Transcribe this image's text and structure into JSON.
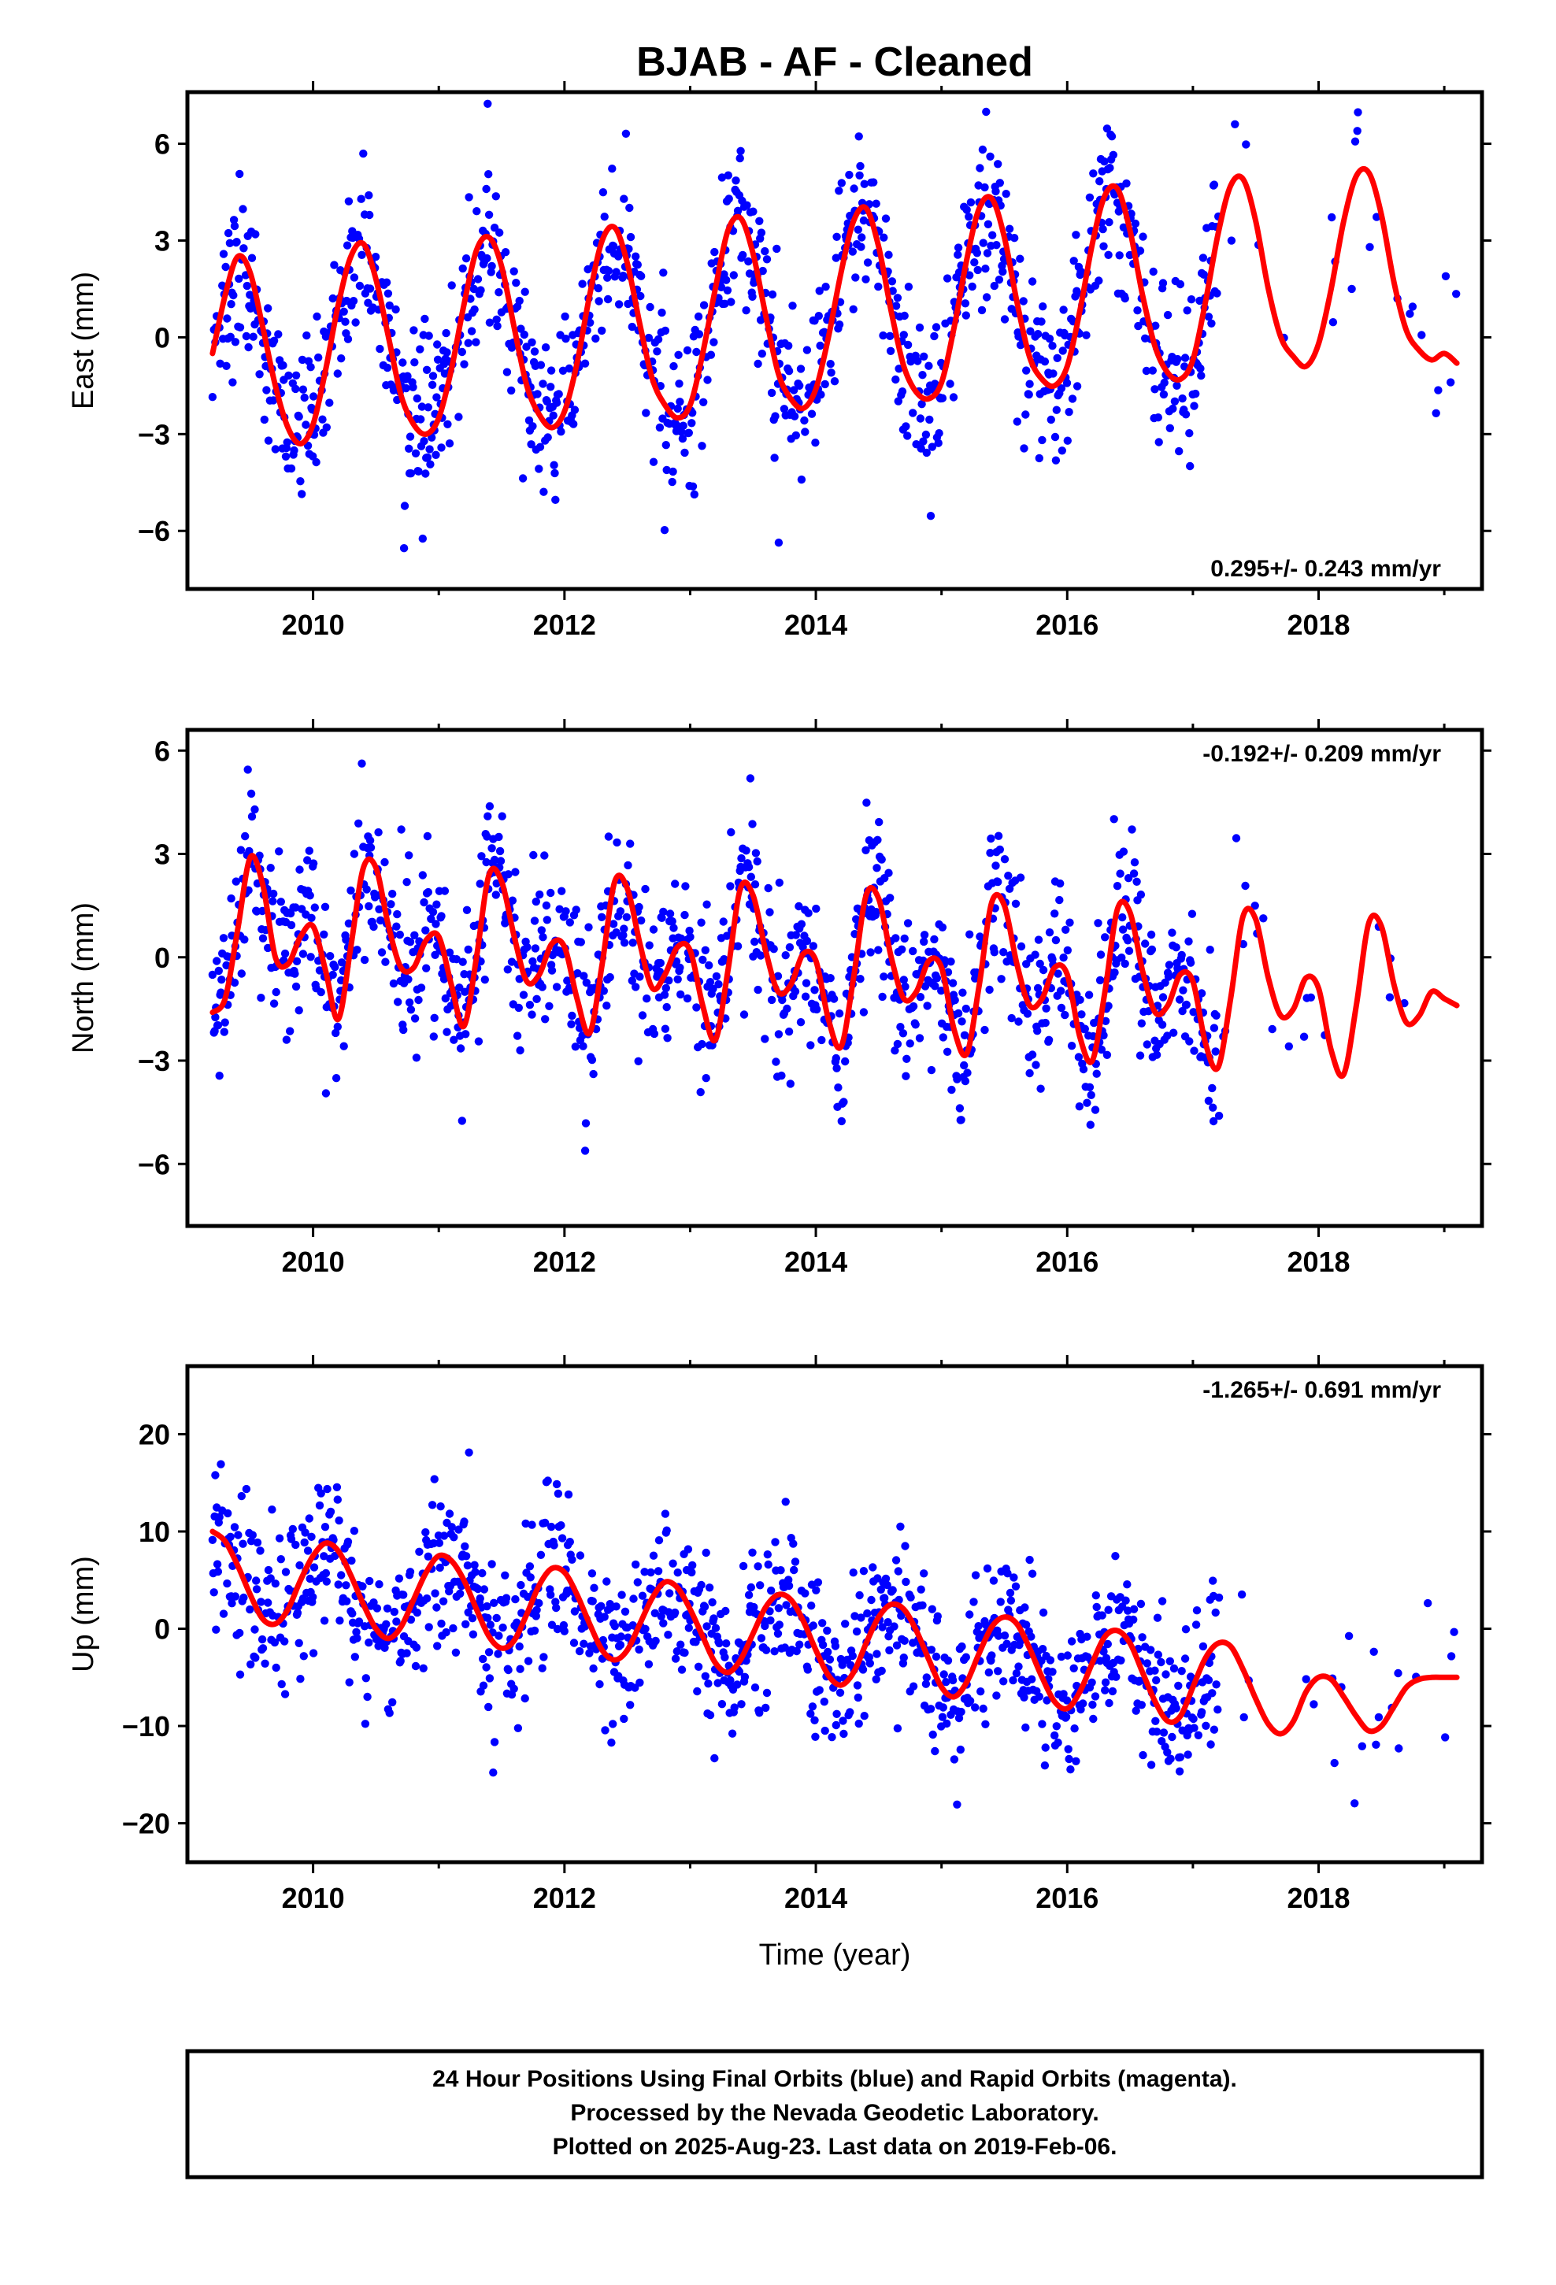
{
  "title": "BJAB  - AF - Cleaned",
  "xlabel": "Time (year)",
  "footer": [
    "24 Hour Positions Using Final Orbits (blue) and Rapid Orbits (magenta).",
    "Processed by the Nevada Geodetic Laboratory.",
    "Plotted on 2025-Aug-23. Last data on 2019-Feb-06."
  ],
  "colors": {
    "points": "#0000ff",
    "model": "#ff0000",
    "frame": "#000000"
  },
  "chart_data": [
    {
      "type": "scatter",
      "ylabel": "East (mm)",
      "xlim": [
        2009.0,
        2019.3
      ],
      "ylim": [
        -7.8,
        7.6
      ],
      "yticks": [
        -6,
        -3,
        0,
        3,
        6
      ],
      "xticks": [
        2010,
        2012,
        2014,
        2016,
        2018
      ],
      "rate_label": "0.295+/- 0.243 mm/yr",
      "rate_pos": "bottom-right",
      "model_series": {
        "x": [
          2009.2,
          2009.3,
          2009.4,
          2009.5,
          2009.6,
          2009.7,
          2009.8,
          2009.9,
          2010.0,
          2010.1,
          2010.2,
          2010.3,
          2010.4,
          2010.5,
          2010.6,
          2010.7,
          2010.8,
          2010.9,
          2011.0,
          2011.1,
          2011.2,
          2011.3,
          2011.4,
          2011.5,
          2011.6,
          2011.7,
          2011.8,
          2011.9,
          2012.0,
          2012.1,
          2012.2,
          2012.3,
          2012.4,
          2012.5,
          2012.6,
          2012.7,
          2012.8,
          2012.9,
          2013.0,
          2013.1,
          2013.2,
          2013.3,
          2013.4,
          2013.5,
          2013.6,
          2013.7,
          2013.8,
          2013.9,
          2014.0,
          2014.1,
          2014.2,
          2014.3,
          2014.4,
          2014.5,
          2014.6,
          2014.7,
          2014.8,
          2014.9,
          2015.0,
          2015.1,
          2015.2,
          2015.3,
          2015.4,
          2015.5,
          2015.6,
          2015.7,
          2015.8,
          2015.9,
          2016.0,
          2016.1,
          2016.2,
          2016.3,
          2016.4,
          2016.5,
          2016.6,
          2016.7,
          2016.8,
          2016.9,
          2017.0,
          2017.1,
          2017.2,
          2017.3,
          2017.4,
          2017.5,
          2017.6,
          2017.7,
          2017.8,
          2017.9,
          2018.0,
          2018.1,
          2018.2,
          2018.3,
          2018.4,
          2018.5,
          2018.6,
          2018.7,
          2018.8,
          2018.9,
          2019.0,
          2019.1
        ],
        "y": [
          -0.5,
          1.3,
          2.5,
          2.0,
          0.3,
          -1.5,
          -2.8,
          -3.3,
          -2.7,
          -1.0,
          1.0,
          2.5,
          2.9,
          1.8,
          0.0,
          -1.8,
          -2.7,
          -3.0,
          -2.5,
          -1.0,
          1.0,
          2.7,
          3.1,
          2.2,
          0.3,
          -1.5,
          -2.4,
          -2.8,
          -2.3,
          -0.8,
          1.3,
          3.0,
          3.4,
          2.3,
          0.4,
          -1.3,
          -2.1,
          -2.5,
          -2.1,
          -0.5,
          1.5,
          3.3,
          3.7,
          2.6,
          0.7,
          -1.1,
          -1.9,
          -2.2,
          -1.6,
          0.0,
          2.0,
          3.6,
          4.0,
          2.8,
          0.8,
          -0.9,
          -1.7,
          -1.9,
          -1.4,
          0.3,
          2.4,
          4.0,
          4.3,
          3.1,
          1.1,
          -0.6,
          -1.3,
          -1.5,
          -0.9,
          0.8,
          2.9,
          4.4,
          4.6,
          3.3,
          1.3,
          -0.3,
          -1.1,
          -1.3,
          -0.7,
          1.1,
          3.2,
          4.7,
          4.9,
          3.6,
          1.5,
          0.0,
          -0.6,
          -0.9,
          -0.2,
          1.5,
          3.6,
          5.0,
          5.1,
          3.8,
          1.7,
          0.2,
          -0.4,
          -0.7,
          -0.5,
          -0.8
        ]
      },
      "observation_model": {
        "amplitude": 3.0,
        "phase_year": 2009.15,
        "noise_sd": 1.3,
        "trend_mm_per_yr": 0.3
      }
    },
    {
      "type": "scatter",
      "ylabel": "North (mm)",
      "xlim": [
        2009.0,
        2019.3
      ],
      "ylim": [
        -7.8,
        6.6
      ],
      "yticks": [
        -6,
        -3,
        0,
        3,
        6
      ],
      "xticks": [
        2010,
        2012,
        2014,
        2016,
        2018
      ],
      "rate_label": "-0.192+/- 0.209 mm/yr",
      "rate_pos": "top-right",
      "model_series": {
        "x": [
          2009.2,
          2009.3,
          2009.4,
          2009.5,
          2009.6,
          2009.7,
          2009.8,
          2009.9,
          2010.0,
          2010.1,
          2010.2,
          2010.3,
          2010.4,
          2010.5,
          2010.6,
          2010.7,
          2010.8,
          2010.9,
          2011.0,
          2011.1,
          2011.2,
          2011.3,
          2011.4,
          2011.5,
          2011.6,
          2011.7,
          2011.8,
          2011.9,
          2012.0,
          2012.1,
          2012.2,
          2012.3,
          2012.4,
          2012.5,
          2012.6,
          2012.7,
          2012.8,
          2012.9,
          2013.0,
          2013.1,
          2013.2,
          2013.3,
          2013.4,
          2013.5,
          2013.6,
          2013.7,
          2013.8,
          2013.9,
          2014.0,
          2014.1,
          2014.2,
          2014.3,
          2014.4,
          2014.5,
          2014.6,
          2014.7,
          2014.8,
          2014.9,
          2015.0,
          2015.1,
          2015.2,
          2015.3,
          2015.4,
          2015.5,
          2015.6,
          2015.7,
          2015.8,
          2015.9,
          2016.0,
          2016.1,
          2016.2,
          2016.3,
          2016.4,
          2016.5,
          2016.6,
          2016.7,
          2016.8,
          2016.9,
          2017.0,
          2017.1,
          2017.2,
          2017.3,
          2017.4,
          2017.5,
          2017.6,
          2017.7,
          2017.8,
          2017.9,
          2018.0,
          2018.1,
          2018.2,
          2018.3,
          2018.4,
          2018.5,
          2018.6,
          2018.7,
          2018.8,
          2018.9,
          2019.0,
          2019.1
        ],
        "y": [
          -1.6,
          -1.2,
          0.8,
          2.9,
          2.1,
          0.0,
          -0.2,
          0.6,
          0.9,
          -0.4,
          -1.8,
          0.3,
          2.6,
          2.6,
          0.9,
          -0.3,
          -0.3,
          0.5,
          0.6,
          -0.8,
          -2.0,
          0.0,
          2.4,
          2.2,
          0.6,
          -0.7,
          -0.5,
          0.4,
          0.3,
          -1.2,
          -2.2,
          -0.2,
          2.2,
          2.0,
          0.4,
          -0.9,
          -0.5,
          0.3,
          0.2,
          -1.4,
          -2.4,
          -0.4,
          2.0,
          1.8,
          0.2,
          -1.0,
          -0.8,
          0.1,
          -0.1,
          -1.8,
          -2.6,
          -0.6,
          1.8,
          1.7,
          0.0,
          -1.2,
          -1.0,
          -0.1,
          -0.3,
          -2.1,
          -2.8,
          -0.8,
          1.6,
          1.5,
          -0.2,
          -1.4,
          -1.2,
          -0.3,
          -0.5,
          -2.3,
          -3.0,
          -1.0,
          1.4,
          1.3,
          -0.4,
          -1.6,
          -1.4,
          -0.5,
          -0.7,
          -2.5,
          -3.2,
          -1.2,
          1.2,
          1.1,
          -0.6,
          -1.7,
          -1.5,
          -0.6,
          -0.9,
          -2.7,
          -3.4,
          -1.4,
          1.0,
          0.9,
          -0.8,
          -1.9,
          -1.7,
          -1.0,
          -1.2,
          -1.4
        ]
      },
      "observation_model": {
        "amplitude": 1.8,
        "phase_year": 2009.4,
        "noise_sd": 1.2,
        "trend_mm_per_yr": -0.2
      }
    },
    {
      "type": "scatter",
      "ylabel": "Up (mm)",
      "xlim": [
        2009.0,
        2019.3
      ],
      "ylim": [
        -24,
        27
      ],
      "yticks": [
        -20,
        -10,
        0,
        10,
        20
      ],
      "xticks": [
        2010,
        2012,
        2014,
        2016,
        2018
      ],
      "rate_label": "-1.265+/- 0.691 mm/yr",
      "rate_pos": "top-right",
      "model_series": {
        "x": [
          2009.2,
          2009.3,
          2009.4,
          2009.5,
          2009.6,
          2009.7,
          2009.8,
          2009.9,
          2010.0,
          2010.1,
          2010.2,
          2010.3,
          2010.4,
          2010.5,
          2010.6,
          2010.7,
          2010.8,
          2010.9,
          2011.0,
          2011.1,
          2011.2,
          2011.3,
          2011.4,
          2011.5,
          2011.6,
          2011.7,
          2011.8,
          2011.9,
          2012.0,
          2012.1,
          2012.2,
          2012.3,
          2012.4,
          2012.5,
          2012.6,
          2012.7,
          2012.8,
          2012.9,
          2013.0,
          2013.1,
          2013.2,
          2013.3,
          2013.4,
          2013.5,
          2013.6,
          2013.7,
          2013.8,
          2013.9,
          2014.0,
          2014.1,
          2014.2,
          2014.3,
          2014.4,
          2014.5,
          2014.6,
          2014.7,
          2014.8,
          2014.9,
          2015.0,
          2015.1,
          2015.2,
          2015.3,
          2015.4,
          2015.5,
          2015.6,
          2015.7,
          2015.8,
          2015.9,
          2016.0,
          2016.1,
          2016.2,
          2016.3,
          2016.4,
          2016.5,
          2016.6,
          2016.7,
          2016.8,
          2016.9,
          2017.0,
          2017.1,
          2017.2,
          2017.3,
          2017.4,
          2017.5,
          2017.6,
          2017.7,
          2017.8,
          2017.9,
          2018.0,
          2018.1,
          2018.2,
          2018.3,
          2018.4,
          2018.5,
          2018.6,
          2018.7,
          2018.8,
          2018.9,
          2019.0,
          2019.1
        ],
        "y": [
          10.0,
          9.0,
          6.5,
          3.5,
          1.0,
          0.5,
          2.0,
          5.0,
          7.5,
          8.8,
          8.0,
          5.5,
          2.5,
          0.0,
          -1.0,
          0.2,
          3.0,
          5.8,
          7.5,
          7.0,
          5.0,
          2.0,
          -0.8,
          -2.0,
          -1.2,
          1.5,
          4.5,
          6.2,
          5.8,
          3.5,
          0.5,
          -2.2,
          -3.2,
          -2.2,
          0.5,
          3.2,
          4.8,
          4.2,
          2.0,
          -0.8,
          -3.5,
          -4.5,
          -3.2,
          -0.5,
          2.2,
          3.5,
          3.0,
          0.8,
          -2.2,
          -4.8,
          -5.8,
          -4.5,
          -1.5,
          1.2,
          2.5,
          2.0,
          -0.2,
          -3.2,
          -6.0,
          -7.0,
          -5.5,
          -2.5,
          0.2,
          1.2,
          0.5,
          -2.0,
          -5.0,
          -7.5,
          -8.2,
          -6.5,
          -3.5,
          -0.8,
          -0.2,
          -1.5,
          -4.5,
          -7.5,
          -9.5,
          -9.0,
          -6.0,
          -3.0,
          -1.5,
          -1.8,
          -4.2,
          -7.2,
          -9.8,
          -10.8,
          -9.5,
          -6.5,
          -5.0,
          -5.2,
          -7.0,
          -9.0,
          -10.5,
          -10.0,
          -8.0,
          -6.0,
          -5.2,
          -5.0,
          -5.0,
          -5.0
        ]
      },
      "observation_model": {
        "amplitude": 5.0,
        "phase_year": 2009.1,
        "noise_sd": 4.0,
        "trend_mm_per_yr": -1.3
      }
    }
  ]
}
